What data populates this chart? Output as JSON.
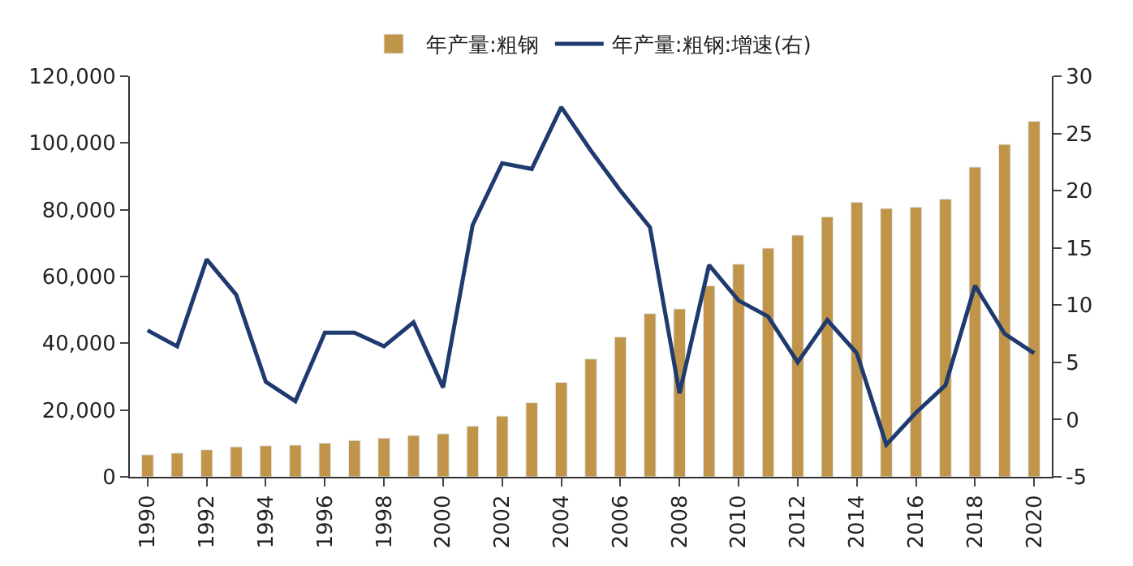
{
  "chart_data": {
    "type": "bar",
    "categories": [
      "1990",
      null,
      "1992",
      null,
      "1994",
      null,
      "1996",
      null,
      "1998",
      null,
      "2000",
      null,
      "2002",
      null,
      "2004",
      null,
      "2006",
      null,
      "2008",
      null,
      "2010",
      null,
      "2012",
      null,
      "2014",
      null,
      "2016",
      null,
      "2018",
      null,
      "2020"
    ],
    "series": [
      {
        "name": "年产量:粗钢",
        "color": "#c0954a",
        "values": [
          6600,
          7100,
          8100,
          9000,
          9300,
          9500,
          10100,
          10900,
          11600,
          12400,
          12900,
          15200,
          18200,
          22200,
          28300,
          35300,
          41900,
          48900,
          50300,
          57200,
          63700,
          68500,
          72400,
          77900,
          82300,
          80400,
          80800,
          83200,
          92800,
          99600,
          106500
        ]
      },
      {
        "name": "年产量:粗钢:增速(右)",
        "type": "line",
        "axis": "y2",
        "color": "#1f3a6e",
        "values": [
          7.8,
          6.4,
          14,
          10.9,
          3.3,
          1.6,
          7.6,
          7.6,
          6.4,
          8.5,
          2.8,
          17,
          22.4,
          21.9,
          27.3,
          23.5,
          20,
          16.8,
          2.3,
          13.5,
          10.4,
          9,
          5,
          8.7,
          5.8,
          -2.2,
          0.6,
          3,
          11.7,
          7.5,
          5.8
        ]
      }
    ],
    "ylim": [
      0,
      120000
    ],
    "yticks": [
      0,
      {
        "value": 20000,
        "label": "20,000"
      },
      {
        "value": 40000,
        "label": "40,000"
      },
      {
        "value": 60000,
        "label": "60,000"
      },
      {
        "value": 80000,
        "label": "80,000"
      },
      {
        "value": 100000,
        "label": "100,000"
      },
      {
        "value": 120000,
        "label": "120,000"
      }
    ],
    "y2lim": [
      -5,
      30
    ],
    "y2ticks": [
      -5,
      0,
      5,
      10,
      15,
      20,
      25,
      30
    ],
    "legend": "top",
    "line_style": "solid",
    "marker": "none"
  }
}
